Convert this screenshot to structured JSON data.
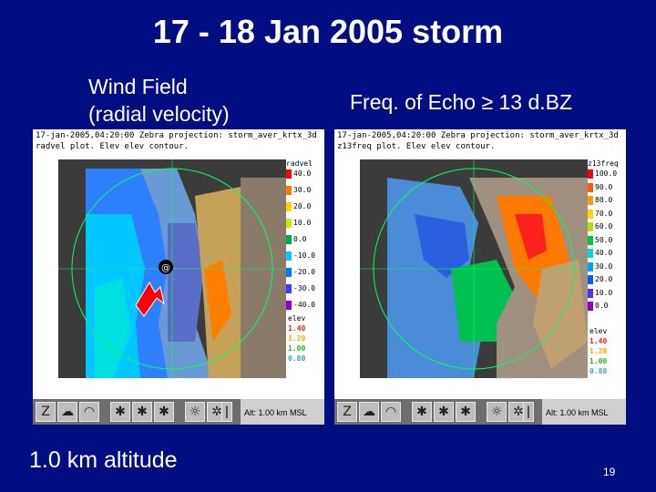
{
  "slide": {
    "title": "17 - 18 Jan 2005 storm",
    "left_caption": [
      "Wind Field",
      "(radial velocity)"
    ],
    "right_caption": "Freq. of Echo ≥ 13 d.BZ",
    "bottom_note": "1.0 km altitude",
    "page_number": "19"
  },
  "left_panel": {
    "header_line1": "17-jan-2005,04:20:00  Zebra projection: storm_aver_krtx_3d",
    "header_line2": "radvel plot. Elev elev contour.",
    "legend_title": "radvel",
    "legend": [
      {
        "label": "40.0",
        "color": "#ff0000"
      },
      {
        "label": "30.0",
        "color": "#ff7a00"
      },
      {
        "label": "20.0",
        "color": "#ffd400"
      },
      {
        "label": "10.0",
        "color": "#c6ef00"
      },
      {
        "label": "0.0",
        "color": "#00a850"
      },
      {
        "label": "-10.0",
        "color": "#00c8ff"
      },
      {
        "label": "-20.0",
        "color": "#0078ff"
      },
      {
        "label": "-30.0",
        "color": "#3c3cff"
      },
      {
        "label": "-40.0",
        "color": "#9000c8"
      }
    ],
    "elev_title": "elev",
    "elev": [
      {
        "label": "1.40",
        "color": "#ff2020"
      },
      {
        "label": "1.20",
        "color": "#ffaa00"
      },
      {
        "label": "1.00",
        "color": "#20c020"
      },
      {
        "label": "0.80",
        "color": "#40a0c0"
      }
    ],
    "altitude": "Alt: 1.00 km MSL"
  },
  "right_panel": {
    "header_line1": "17-jan-2005,04:20:00  Zebra projection: storm_aver_krtx_3d",
    "header_line2": "z13freq plot. Elev elev contour.",
    "legend_title": "z13freq",
    "legend": [
      {
        "label": "100.0",
        "color": "#ff0000"
      },
      {
        "label": "90.0",
        "color": "#ff5a00"
      },
      {
        "label": "80.0",
        "color": "#ff9a00"
      },
      {
        "label": "70.0",
        "color": "#ffd400"
      },
      {
        "label": "60.0",
        "color": "#b0e000"
      },
      {
        "label": "50.0",
        "color": "#00c050"
      },
      {
        "label": "40.0",
        "color": "#00d8d8"
      },
      {
        "label": "30.0",
        "color": "#00a0ff"
      },
      {
        "label": "20.0",
        "color": "#0060ff"
      },
      {
        "label": "10.0",
        "color": "#5030ff"
      },
      {
        "label": "0.0",
        "color": "#9000c8"
      }
    ],
    "elev_title": "elev",
    "elev": [
      {
        "label": "1.40",
        "color": "#ff2020"
      },
      {
        "label": "1.20",
        "color": "#ffaa00"
      },
      {
        "label": "1.00",
        "color": "#20c020"
      },
      {
        "label": "0.80",
        "color": "#40a0c0"
      }
    ],
    "altitude": "Alt: 1.00 km MSL"
  },
  "toolbar_icons": [
    "z-zoom-icon",
    "cloud-icon",
    "dish-icon",
    "radar-icon",
    "radar-icon",
    "radar-icon",
    "target-icon",
    "sun-icon",
    "star-icon",
    "thermometer-icon",
    "thermometer-icon"
  ]
}
